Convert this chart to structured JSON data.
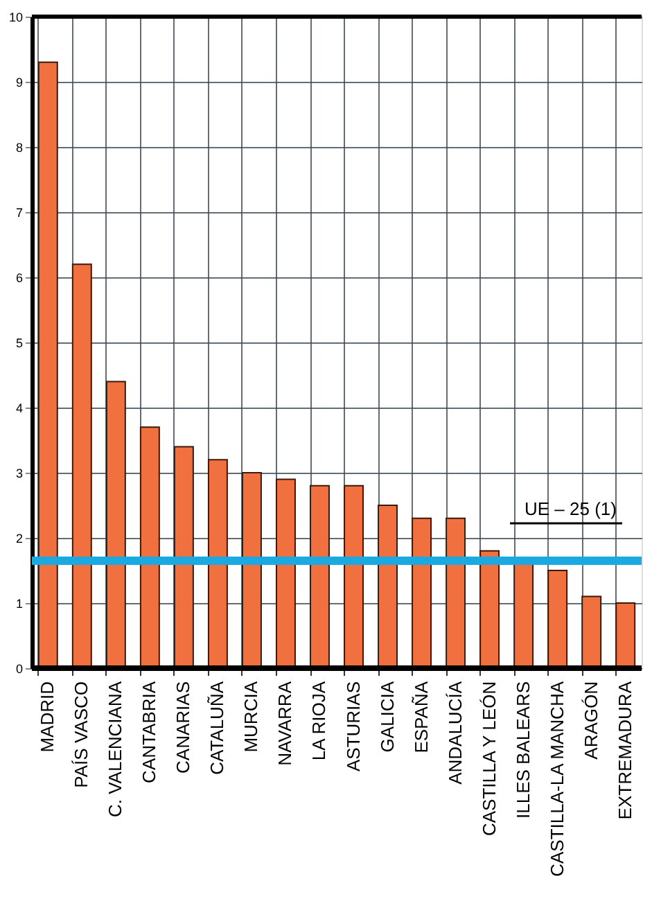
{
  "chart_data": {
    "type": "bar",
    "categories": [
      "MADRID",
      "PAÍS VASCO",
      "C. VALENCIANA",
      "CANTABRIA",
      "CANARIAS",
      "CATALUÑA",
      "MURCIA",
      "NAVARRA",
      "LA RIOJA",
      "ASTURIAS",
      "GALICIA",
      "ESPAÑA",
      "ANDALUCÍA",
      "CASTILLA Y LEÓN",
      "ILLES BALEARS",
      "CASTILLA-LA MANCHA",
      "ARAGÓN",
      "EXTREMADURA"
    ],
    "values": [
      9.3,
      6.2,
      4.4,
      3.7,
      3.4,
      3.2,
      3.0,
      2.9,
      2.8,
      2.8,
      2.5,
      2.3,
      2.3,
      1.8,
      1.6,
      1.5,
      1.1,
      1.0
    ],
    "color": "#f07040",
    "ylim": [
      0,
      10
    ],
    "yticks": [
      0,
      1,
      2,
      3,
      4,
      5,
      6,
      7,
      8,
      9,
      10
    ],
    "grid": true,
    "ref_lines": [
      {
        "axis": "y",
        "value": 1.65,
        "label": "UE – 25 (1)",
        "color": "#1ba9e1"
      }
    ]
  }
}
